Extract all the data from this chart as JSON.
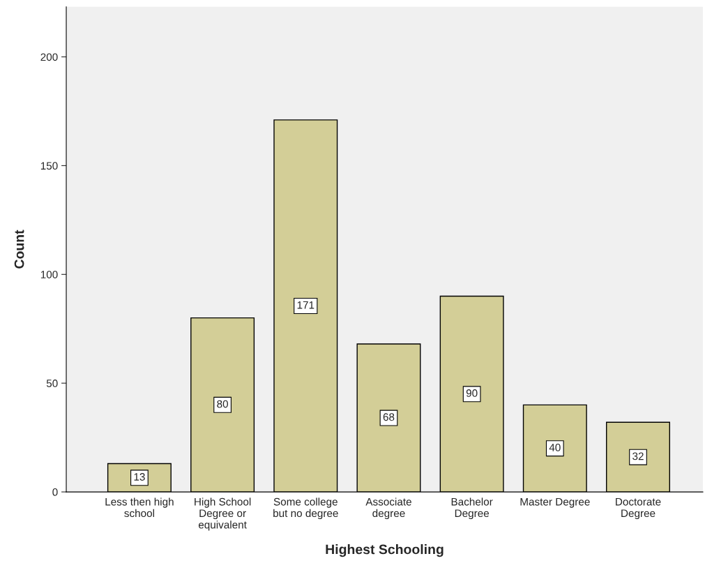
{
  "chart_data": {
    "type": "bar",
    "xlabel": "Highest Schooling",
    "ylabel": "Count",
    "categories": [
      "Less then high\nschool",
      "High School\nDegree or\nequivalent",
      "Some college\nbut no degree",
      "Associate\ndegree",
      "Bachelor\nDegree",
      "Master Degree",
      "Doctorate\nDegree"
    ],
    "values": [
      13,
      80,
      171,
      68,
      90,
      40,
      32
    ],
    "color": "#d3ce97",
    "ylim": [
      0,
      223
    ],
    "yticks": [
      0,
      50,
      100,
      150,
      200
    ],
    "data_labels": true,
    "grid": false,
    "legend": false
  }
}
